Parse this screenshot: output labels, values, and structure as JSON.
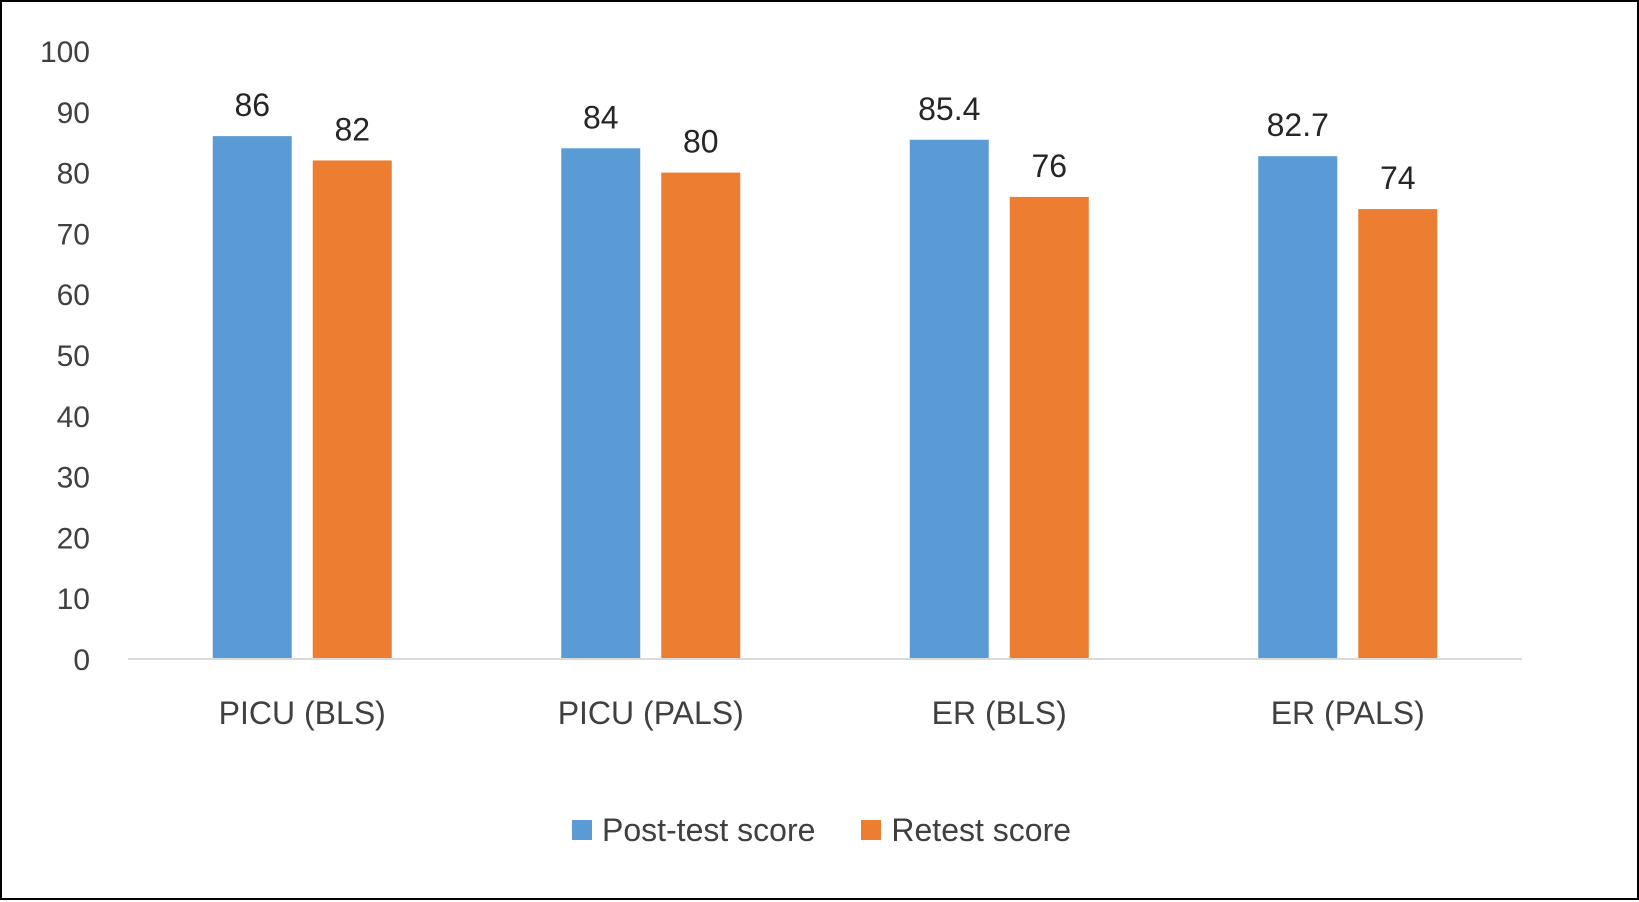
{
  "chart_data": {
    "type": "bar",
    "categories": [
      "PICU (BLS)",
      "PICU (PALS)",
      "ER (BLS)",
      "ER (PALS)"
    ],
    "series": [
      {
        "name": "Post-test score",
        "values": [
          86,
          84,
          85.4,
          82.7
        ],
        "color": "#5B9BD5"
      },
      {
        "name": "Retest score",
        "values": [
          82,
          80,
          76,
          74
        ],
        "color": "#ED7D31"
      }
    ],
    "data_labels": [
      [
        "86",
        "84",
        "85.4",
        "82.7"
      ],
      [
        "82",
        "80",
        "76",
        "74"
      ]
    ],
    "ylim": [
      0,
      100
    ],
    "yticks": [
      0,
      10,
      20,
      30,
      40,
      50,
      60,
      70,
      80,
      90,
      100
    ],
    "grid": false,
    "legend_position": "bottom",
    "axis_color": "#D9D9D9",
    "title": "",
    "xlabel": "",
    "ylabel": ""
  }
}
